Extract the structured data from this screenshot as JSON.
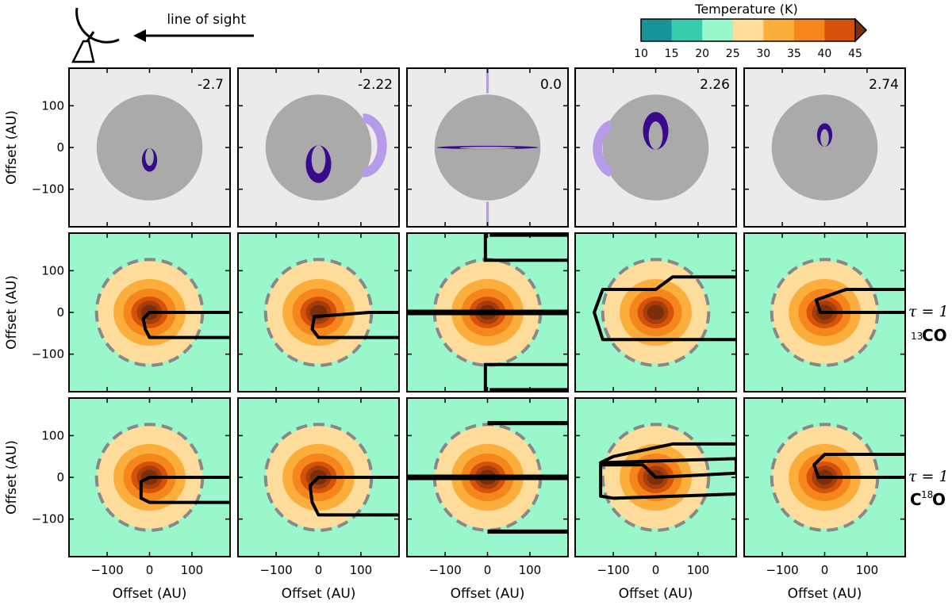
{
  "chart_data": {
    "type": "contour-grid",
    "description_labels": {
      "line_of_sight": "line of sight",
      "colorbar_title": "Temperature (K)",
      "xlabel": "Offset (AU)",
      "ylabel": "Offset (AU)",
      "tau_label": "τ = 1",
      "row_labels": [
        {
          "sup": "13",
          "text": "CO"
        },
        {
          "sup": "18",
          "pre": "C",
          "text": "O"
        }
      ]
    },
    "colorbar": {
      "ticks": [
        10,
        15,
        20,
        25,
        30,
        35,
        40,
        45
      ],
      "colors": [
        "#19939a",
        "#38ccac",
        "#9af7cc",
        "#fddc9c",
        "#fcae3c",
        "#f5861c",
        "#d6520a",
        "#7c2e09"
      ],
      "extend": "max"
    },
    "axes": {
      "xlim": [
        -190,
        190
      ],
      "ylim": [
        -190,
        190
      ],
      "xticks": [
        -100,
        0,
        100
      ],
      "yticks": [
        -100,
        0,
        100
      ]
    },
    "velocities": [
      "-2.7",
      "-2.22",
      "0.0",
      "2.26",
      "2.74"
    ],
    "disk_radius_au": 125,
    "dashed_circle_radius_au": 125,
    "temperature_contours": [
      {
        "rx": 190,
        "ry": 190,
        "color": "#9af7cc"
      },
      {
        "rx": 125,
        "ry": 123,
        "color": "#fddc9c"
      },
      {
        "rx": 85,
        "ry": 80,
        "color": "#fcae3c"
      },
      {
        "rx": 62,
        "ry": 57,
        "color": "#f5861c"
      },
      {
        "rx": 43,
        "ry": 38,
        "color": "#d6520a"
      },
      {
        "rx": 30,
        "ry": 28,
        "color": "#a43f0b"
      },
      {
        "rx": 20,
        "ry": 18,
        "color": "#7c2e09"
      }
    ],
    "emission_crescents": [
      [
        {
          "cx": 0,
          "cy": -30,
          "rx": 18,
          "ry": 28,
          "color": "#3a0a8c"
        }
      ],
      [
        {
          "cx": 0,
          "cy": -40,
          "rx": 30,
          "ry": 45,
          "color": "#3a0a8c"
        }
      ],
      [
        {
          "cx": 0,
          "cy": 0,
          "rx": 120,
          "ry": 4,
          "color": "#3a0a8c"
        }
      ],
      [
        {
          "cx": 0,
          "cy": 40,
          "rx": 30,
          "ry": 45,
          "color": "#3a0a8c"
        }
      ],
      [
        {
          "cx": 0,
          "cy": 30,
          "rx": 18,
          "ry": 28,
          "color": "#3a0a8c"
        }
      ]
    ],
    "tau_surfaces_13CO": [
      [
        [
          190,
          0
        ],
        [
          0,
          0
        ],
        [
          -15,
          -15
        ],
        [
          -10,
          -40
        ],
        [
          0,
          -60
        ],
        [
          190,
          -60
        ]
      ],
      [
        [
          190,
          0
        ],
        [
          120,
          0
        ],
        [
          -10,
          -10
        ],
        [
          -15,
          -40
        ],
        [
          0,
          -60
        ],
        [
          190,
          -60
        ]
      ],
      [
        [
          -190,
          0
        ],
        [
          190,
          0
        ]
      ],
      [
        [
          190,
          85
        ],
        [
          40,
          85
        ],
        [
          0,
          55
        ],
        [
          -50,
          55
        ],
        [
          -125,
          55
        ],
        [
          -145,
          0
        ],
        [
          -125,
          -65
        ],
        [
          190,
          -65
        ]
      ],
      [
        [
          190,
          55
        ],
        [
          50,
          55
        ],
        [
          -20,
          30
        ],
        [
          -10,
          0
        ],
        [
          190,
          0
        ]
      ]
    ],
    "tau_surfaces_C18O": [
      [
        [
          190,
          0
        ],
        [
          0,
          0
        ],
        [
          -20,
          -10
        ],
        [
          -20,
          -50
        ],
        [
          0,
          -60
        ],
        [
          190,
          -60
        ]
      ],
      [
        [
          190,
          0
        ],
        [
          0,
          0
        ],
        [
          -20,
          -20
        ],
        [
          -15,
          -60
        ],
        [
          0,
          -90
        ],
        [
          190,
          -90
        ]
      ],
      [
        [
          -190,
          0
        ],
        [
          190,
          0
        ]
      ],
      [
        [
          190,
          80
        ],
        [
          40,
          80
        ],
        [
          -100,
          50
        ],
        [
          -130,
          35
        ],
        [
          190,
          45
        ],
        [
          190,
          10
        ],
        [
          0,
          0
        ],
        [
          -30,
          30
        ],
        [
          -130,
          30
        ],
        [
          -130,
          -45
        ],
        [
          -100,
          -50
        ],
        [
          190,
          -40
        ]
      ],
      [
        [
          190,
          55
        ],
        [
          0,
          55
        ],
        [
          -25,
          30
        ],
        [
          -15,
          0
        ],
        [
          190,
          0
        ]
      ]
    ]
  }
}
